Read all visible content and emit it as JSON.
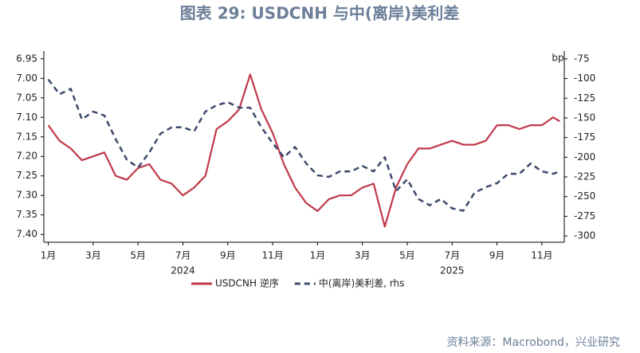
{
  "chart_data": {
    "type": "line",
    "title": "图表 29: USDCNH 与中(离岸)美利差",
    "source": "资料来源：Macrobond，兴业研究",
    "y2_unit": "bp",
    "x": [
      0,
      0.5,
      1,
      1.5,
      2,
      2.5,
      3,
      3.5,
      4,
      4.5,
      5,
      5.5,
      6,
      6.5,
      7,
      7.5,
      8,
      8.5,
      9,
      9.5,
      10,
      10.5,
      11,
      11.5,
      12,
      12.5,
      13,
      13.5,
      14,
      14.5,
      15,
      15.5,
      16,
      16.5,
      17,
      17.5,
      18,
      18.5,
      19,
      19.5,
      20,
      20.5,
      21,
      21.5,
      22,
      22.5,
      22.8
    ],
    "xlim": [
      -0.2,
      23
    ],
    "xticks": [
      {
        "value": 0,
        "label": "1月"
      },
      {
        "value": 2,
        "label": "3月"
      },
      {
        "value": 4,
        "label": "5月"
      },
      {
        "value": 6,
        "label": "7月"
      },
      {
        "value": 8,
        "label": "9月"
      },
      {
        "value": 10,
        "label": "11月"
      },
      {
        "value": 12,
        "label": "1月"
      },
      {
        "value": 14,
        "label": "3月"
      },
      {
        "value": 16,
        "label": "5月"
      },
      {
        "value": 18,
        "label": "7月"
      },
      {
        "value": 20,
        "label": "9月"
      },
      {
        "value": 22,
        "label": "11月"
      }
    ],
    "x_groups": [
      {
        "value": 6,
        "label": "2024"
      },
      {
        "value": 18,
        "label": "2025"
      }
    ],
    "ylim": [
      6.93,
      7.42
    ],
    "y_inverted": true,
    "yticks": [
      6.95,
      {
        "value": 7.0,
        "label": "7.00"
      },
      7.05,
      {
        "value": 7.1,
        "label": "7.10"
      },
      7.15,
      {
        "value": 7.2,
        "label": "7.20"
      },
      7.25,
      {
        "value": 7.3,
        "label": "7.30"
      },
      7.35,
      {
        "value": 7.4,
        "label": "7.40"
      }
    ],
    "y2lim": [
      -308,
      -65
    ],
    "y2ticks": [
      -75,
      -100,
      -125,
      -150,
      -175,
      -200,
      -225,
      -250,
      -275,
      -300
    ],
    "series": [
      {
        "name": "USDCNH 逆序",
        "color": "#c0394b",
        "dash": false,
        "values": [
          7.12,
          7.16,
          7.18,
          7.21,
          7.2,
          7.19,
          7.25,
          7.26,
          7.23,
          7.22,
          7.26,
          7.27,
          7.3,
          7.28,
          7.25,
          7.13,
          7.11,
          7.08,
          6.99,
          7.08,
          7.14,
          7.22,
          7.28,
          7.32,
          7.34,
          7.31,
          7.3,
          7.3,
          7.28,
          7.27,
          7.38,
          7.28,
          7.22,
          7.18,
          7.18,
          7.17,
          7.16,
          7.17,
          7.17,
          7.16,
          7.12,
          7.12,
          7.13,
          7.12,
          7.12,
          7.1,
          7.11
        ]
      },
      {
        "name": "中(离岸)美利差, rhs",
        "color": "#3d4a6b",
        "dash": true,
        "axis": "y2",
        "values": [
          -101,
          -120,
          -113,
          -152,
          -142,
          -147,
          -177,
          -203,
          -213,
          -194,
          -170,
          -162,
          -162,
          -167,
          -142,
          -134,
          -130,
          -137,
          -137,
          -162,
          -182,
          -200,
          -187,
          -208,
          -223,
          -225,
          -218,
          -218,
          -211,
          -218,
          -200,
          -243,
          -228,
          -253,
          -261,
          -253,
          -265,
          -268,
          -245,
          -238,
          -233,
          -221,
          -221,
          -208,
          -218,
          -221,
          -218
        ]
      }
    ]
  }
}
